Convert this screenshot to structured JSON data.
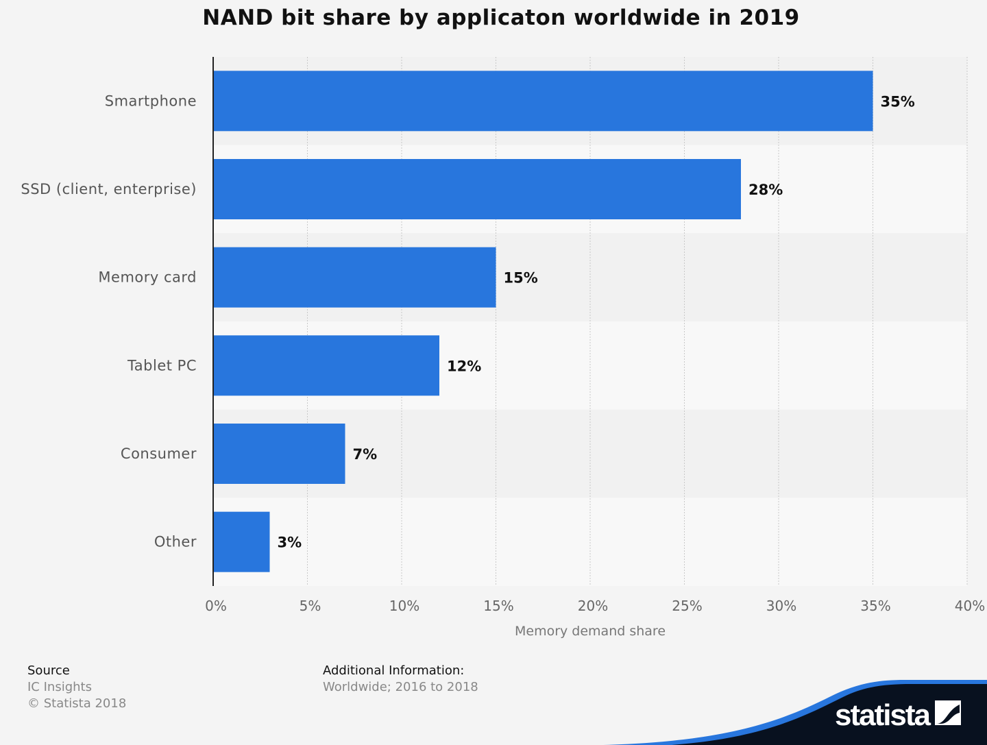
{
  "chart_data": {
    "type": "bar",
    "orientation": "horizontal",
    "title": "NAND bit share by applicaton worldwide in 2019",
    "categories": [
      "Smartphone",
      "SSD (client, enterprise)",
      "Memory card",
      "Tablet PC",
      "Consumer",
      "Other"
    ],
    "values": [
      35,
      28,
      15,
      12,
      7,
      3
    ],
    "data_labels": [
      "35%",
      "28%",
      "15%",
      "12%",
      "7%",
      "3%"
    ],
    "xlabel": "Memory demand share",
    "ylabel": "",
    "xlim": [
      0,
      40
    ],
    "ticks": [
      "0%",
      "5%",
      "10%",
      "15%",
      "20%",
      "25%",
      "30%",
      "35%",
      "40%"
    ],
    "grid": true,
    "bar_color": "#2876dd"
  },
  "footer": {
    "source_heading": "Source",
    "source": "IC Insights",
    "copyright": "© Statista 2018",
    "info_heading": "Additional Information:",
    "info": "Worldwide; 2016 to 2018"
  },
  "logo": {
    "text": "statista",
    "dark": "#08111f",
    "accent": "#2876dd"
  }
}
